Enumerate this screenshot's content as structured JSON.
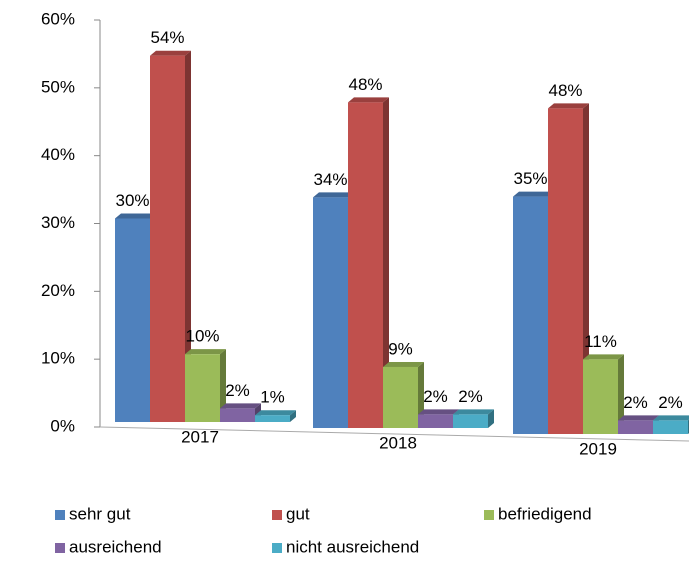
{
  "chart_data": {
    "type": "bar3d",
    "categories": [
      "2017",
      "2018",
      "2019"
    ],
    "series": [
      {
        "name": "sehr gut",
        "color": "#4f81bd",
        "values": [
          30,
          34,
          35
        ],
        "value_labels": [
          "30%",
          "34%",
          "35%"
        ]
      },
      {
        "name": "gut",
        "color": "#c0504d",
        "values": [
          54,
          48,
          48
        ],
        "value_labels": [
          "54%",
          "48%",
          "48%"
        ]
      },
      {
        "name": "befriedigend",
        "color": "#9bbb59",
        "values": [
          10,
          9,
          11
        ],
        "value_labels": [
          "10%",
          "9%",
          "11%"
        ]
      },
      {
        "name": "ausreichend",
        "color": "#8064a2",
        "values": [
          2,
          2,
          2
        ],
        "value_labels": [
          "2%",
          "2%",
          "2%"
        ]
      },
      {
        "name": "nicht ausreichend",
        "color": "#4bacc6",
        "values": [
          1,
          2,
          2
        ],
        "value_labels": [
          "1%",
          "2%",
          "2%"
        ]
      }
    ],
    "ylim": [
      0,
      60
    ],
    "yticks": [
      {
        "value": 0,
        "label": "0%"
      },
      {
        "value": 10,
        "label": "10%"
      },
      {
        "value": 20,
        "label": "20%"
      },
      {
        "value": 30,
        "label": "30%"
      },
      {
        "value": 40,
        "label": "40%"
      },
      {
        "value": 50,
        "label": "50%"
      },
      {
        "value": 60,
        "label": "60%"
      }
    ],
    "legend": "bottom"
  }
}
